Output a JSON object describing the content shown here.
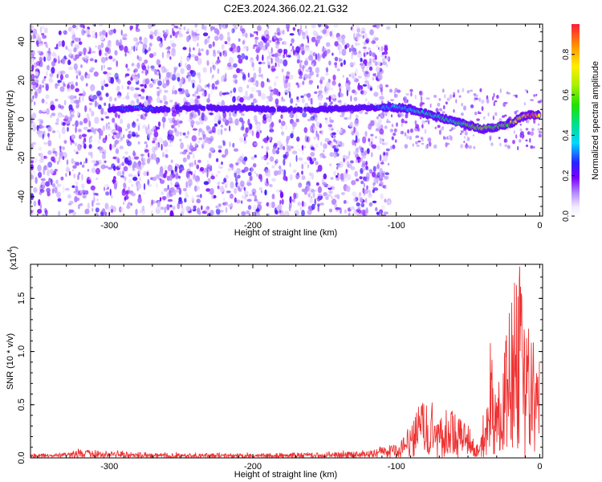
{
  "title": "C2E3.2024.366.02.21.G32",
  "chart_data": [
    {
      "type": "heatmap",
      "xlabel": "Height of straight line (km)",
      "ylabel": "Frequency (Hz)",
      "xlim": [
        -355,
        2
      ],
      "ylim": [
        -50,
        49
      ],
      "xticks": [
        -300,
        -200,
        -100,
        0
      ],
      "yticks": [
        -40,
        -20,
        0,
        20,
        40
      ],
      "colorbar": {
        "label": "Normalized spectral amplitude",
        "range": [
          0,
          0.95
        ],
        "ticks": [
          0.0,
          0.2,
          0.4,
          0.6,
          0.8
        ]
      },
      "noise_region": {
        "x": [
          -355,
          -105
        ],
        "y": [
          -50,
          49
        ]
      },
      "sparse_noise_region": {
        "x": [
          -105,
          2
        ],
        "y": [
          -15,
          15
        ]
      },
      "signal_ridge": {
        "x": [
          -300,
          -290,
          -280,
          -270,
          -230,
          -220,
          -210,
          -190,
          -150,
          -120,
          -110,
          -100,
          -90,
          -80,
          -70,
          -60,
          -50,
          -40,
          -30,
          -20,
          -15,
          -10,
          -5,
          0
        ],
        "y": [
          5,
          5,
          6,
          5,
          6,
          5,
          6,
          5,
          5,
          6,
          6,
          6,
          5,
          3,
          1,
          -1,
          -3,
          -5,
          -4,
          -2,
          0,
          2,
          2,
          2
        ],
        "amplitude": [
          0.25,
          0.3,
          0.35,
          0.3,
          0.2,
          0.3,
          0.25,
          0.15,
          0.15,
          0.2,
          0.35,
          0.4,
          0.45,
          0.5,
          0.55,
          0.5,
          0.6,
          0.7,
          0.6,
          0.7,
          0.8,
          0.9,
          0.95,
          0.9
        ]
      }
    },
    {
      "type": "line",
      "xlabel": "Height of straight line (km)",
      "ylabel": "SNR (10 * v/v)",
      "yscale_label": "(x10",
      "yscale_exponent": "4",
      "yscale_suffix": ")",
      "xlim": [
        -355,
        2
      ],
      "ylim": [
        0,
        1.82
      ],
      "xticks": [
        -300,
        -200,
        -100,
        0
      ],
      "yticks": [
        0.0,
        0.5,
        1.0,
        1.5
      ],
      "ytick_labels": [
        "0.0",
        "0.5",
        "1.0",
        "1.5"
      ],
      "color": "#ee3333",
      "envelope": {
        "x": [
          -355,
          -330,
          -320,
          -300,
          -250,
          -200,
          -150,
          -120,
          -110,
          -100,
          -95,
          -90,
          -85,
          -82,
          -78,
          -75,
          -70,
          -65,
          -60,
          -55,
          -50,
          -45,
          -42,
          -40,
          -35,
          -30,
          -25,
          -22,
          -20,
          -18,
          -15,
          -12,
          -10,
          -7,
          -5,
          -3,
          0
        ],
        "y": [
          0.03,
          0.05,
          0.08,
          0.06,
          0.04,
          0.04,
          0.05,
          0.06,
          0.1,
          0.12,
          0.2,
          0.3,
          0.45,
          0.55,
          0.5,
          0.45,
          0.4,
          0.35,
          0.5,
          0.35,
          0.3,
          0.15,
          0.1,
          0.4,
          0.8,
          1.0,
          1.1,
          1.3,
          1.6,
          1.5,
          1.7,
          1.4,
          1.1,
          1.05,
          1.2,
          1.1,
          0.9
        ]
      }
    }
  ]
}
